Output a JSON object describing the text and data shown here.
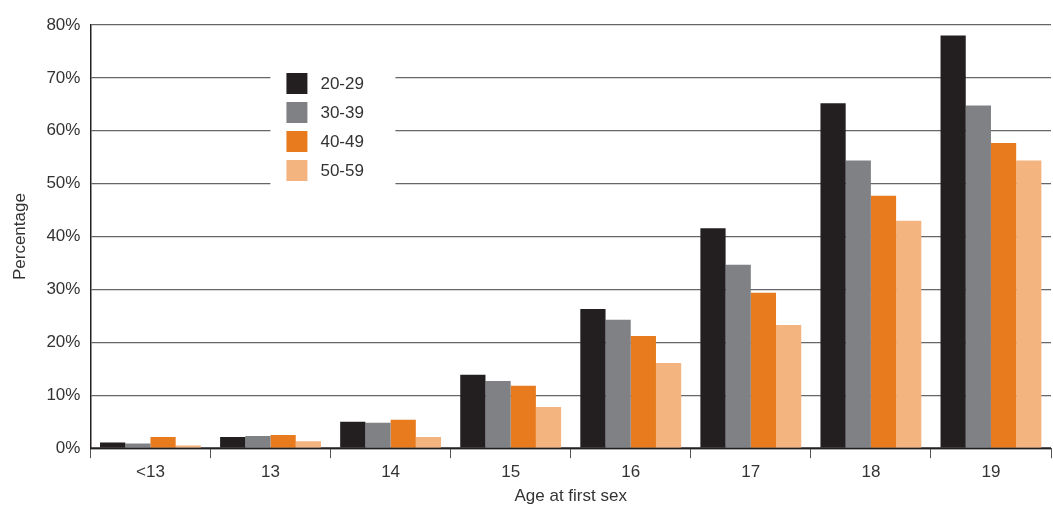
{
  "chart_data": {
    "type": "bar",
    "xlabel": "Age at first sex",
    "ylabel": "Percentage",
    "categories": [
      "<13",
      "13",
      "14",
      "15",
      "16",
      "17",
      "18",
      "19"
    ],
    "series": [
      {
        "name": "20-29",
        "color": "#231f20",
        "values": [
          1.1,
          2.1,
          5.0,
          13.9,
          26.3,
          41.6,
          65.2,
          78.0
        ]
      },
      {
        "name": "30-39",
        "color": "#808184",
        "values": [
          0.9,
          2.3,
          4.8,
          12.7,
          24.3,
          34.7,
          54.4,
          64.8
        ]
      },
      {
        "name": "40-49",
        "color": "#e87b1e",
        "values": [
          2.1,
          2.5,
          5.4,
          11.8,
          21.2,
          29.4,
          47.7,
          57.7
        ]
      },
      {
        "name": "50-59",
        "color": "#f3b47f",
        "values": [
          0.5,
          1.3,
          2.1,
          7.8,
          16.1,
          23.3,
          43.0,
          54.4
        ]
      }
    ],
    "ylim": [
      0,
      80
    ],
    "yticks": [
      {
        "value": 0,
        "label": "0%"
      },
      {
        "value": 10,
        "label": "10%"
      },
      {
        "value": 20,
        "label": "20%"
      },
      {
        "value": 30,
        "label": "30%"
      },
      {
        "value": 40,
        "label": "40%"
      },
      {
        "value": 50,
        "label": "50%"
      },
      {
        "value": 60,
        "label": "60%"
      },
      {
        "value": 70,
        "label": "70%"
      },
      {
        "value": 80,
        "label": "80%"
      }
    ],
    "grid": "y",
    "legend": "top left"
  }
}
